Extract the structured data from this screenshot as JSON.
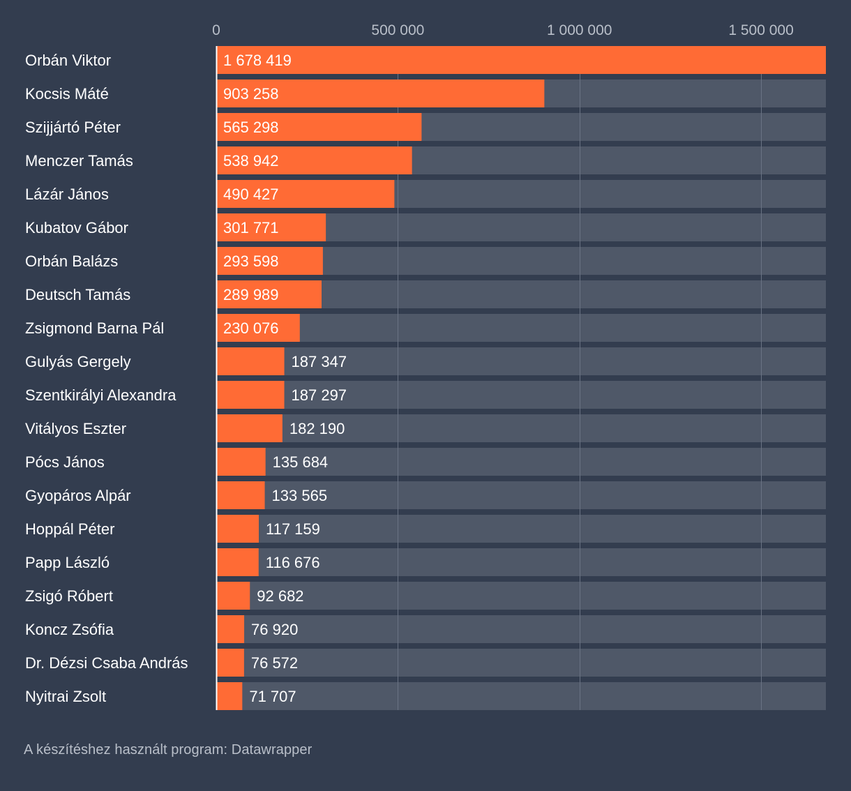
{
  "chart_data": {
    "type": "bar",
    "orientation": "horizontal",
    "title": "",
    "xlabel": "",
    "ylabel": "",
    "xlim": [
      0,
      1678419
    ],
    "ticks": [
      {
        "value": 0,
        "label": "0"
      },
      {
        "value": 500000,
        "label": "500 000"
      },
      {
        "value": 1000000,
        "label": "1 000 000"
      },
      {
        "value": 1500000,
        "label": "1 500 000"
      }
    ],
    "categories": [
      "Orbán Viktor",
      "Kocsis Máté",
      "Szijjártó Péter",
      "Menczer Tamás",
      "Lázár János",
      "Kubatov Gábor",
      "Orbán Balázs",
      "Deutsch Tamás",
      "Zsigmond Barna Pál",
      "Gulyás Gergely",
      "Szentkirályi Alexandra",
      "Vitályos Eszter",
      "Pócs János",
      "Gyopáros Alpár",
      "Hoppál Péter",
      "Papp László",
      "Zsigó Róbert",
      "Koncz Zsófia",
      "Dr. Dézsi Csaba András",
      "Nyitrai Zsolt"
    ],
    "values": [
      1678419,
      903258,
      565298,
      538942,
      490427,
      301771,
      293598,
      289989,
      230076,
      187347,
      187297,
      182190,
      135684,
      133565,
      117159,
      116676,
      92682,
      76920,
      76572,
      71707
    ],
    "value_labels": [
      "1 678 419",
      "903 258",
      "565 298",
      "538 942",
      "490 427",
      "301 771",
      "293 598",
      "289 989",
      "230 076",
      "187 347",
      "187 297",
      "182 190",
      "135 684",
      "133 565",
      "117 159",
      "116 676",
      "92 682",
      "76 920",
      "76 572",
      "71 707"
    ],
    "grid": true,
    "legend": "none"
  },
  "colors": {
    "background": "#333d4f",
    "bar": "#ff6b35",
    "track": "#4f5868",
    "gridline": "#6a7384",
    "axis": "#ffffff",
    "text": "#ffffff",
    "tick_text": "#b9bfc9"
  },
  "footer": {
    "credit": "A készítéshez használt program: Datawrapper"
  }
}
